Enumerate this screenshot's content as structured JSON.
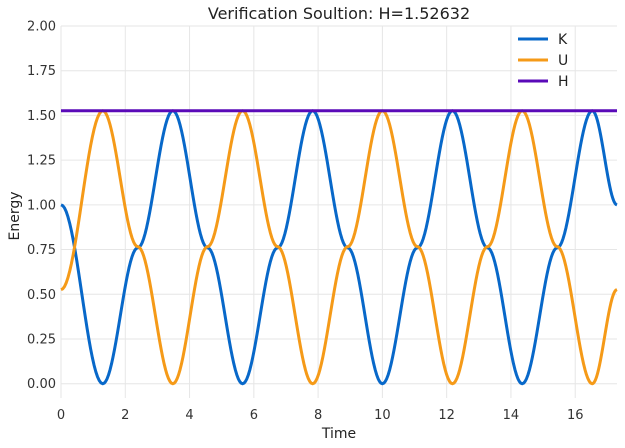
{
  "chart_data": {
    "type": "line",
    "title": "Verification Soultion: H=1.52632",
    "xlabel": "Time",
    "ylabel": "Energy",
    "xlim": [
      0,
      17.3
    ],
    "ylim": [
      -0.08,
      2.0
    ],
    "xticks": [
      0,
      2,
      4,
      6,
      8,
      10,
      12,
      14,
      16
    ],
    "yticks": [
      0.0,
      0.25,
      0.5,
      0.75,
      1.0,
      1.25,
      1.5,
      1.75,
      2.0
    ],
    "xtick_labels": [
      "0",
      "2",
      "4",
      "6",
      "8",
      "10",
      "12",
      "14",
      "16"
    ],
    "ytick_labels": [
      "0.00",
      "0.25",
      "0.50",
      "0.75",
      "1.00",
      "1.25",
      "1.50",
      "1.75",
      "2.00"
    ],
    "grid": true,
    "legend_position": "top-right",
    "series": [
      {
        "name": "K",
        "color": "#0868c9",
        "x": [
          0,
          1.3,
          2.39,
          3.48,
          4.56,
          5.65,
          6.74,
          7.83,
          8.92,
          10.0,
          11.09,
          12.18,
          13.27,
          14.35,
          15.44,
          16.53,
          17.3
        ],
        "y": [
          1.0,
          0.0,
          0.76,
          1.526,
          0.76,
          0.0,
          0.76,
          1.526,
          0.76,
          0.0,
          0.76,
          1.526,
          0.76,
          0.0,
          0.76,
          1.526,
          1.0
        ]
      },
      {
        "name": "U",
        "color": "#f59a18",
        "x": [
          0,
          1.3,
          2.39,
          3.48,
          4.56,
          5.65,
          6.74,
          7.83,
          8.92,
          10.0,
          11.09,
          12.18,
          13.27,
          14.35,
          15.44,
          16.53,
          17.3
        ],
        "y": [
          0.526,
          1.526,
          0.766,
          0.0,
          0.766,
          1.526,
          0.766,
          0.0,
          0.766,
          1.526,
          0.766,
          0.0,
          0.766,
          1.526,
          0.766,
          0.0,
          0.526
        ]
      },
      {
        "name": "H",
        "color": "#5a0ab8",
        "x": [
          0,
          17.3
        ],
        "y": [
          1.52632,
          1.52632
        ]
      }
    ]
  }
}
